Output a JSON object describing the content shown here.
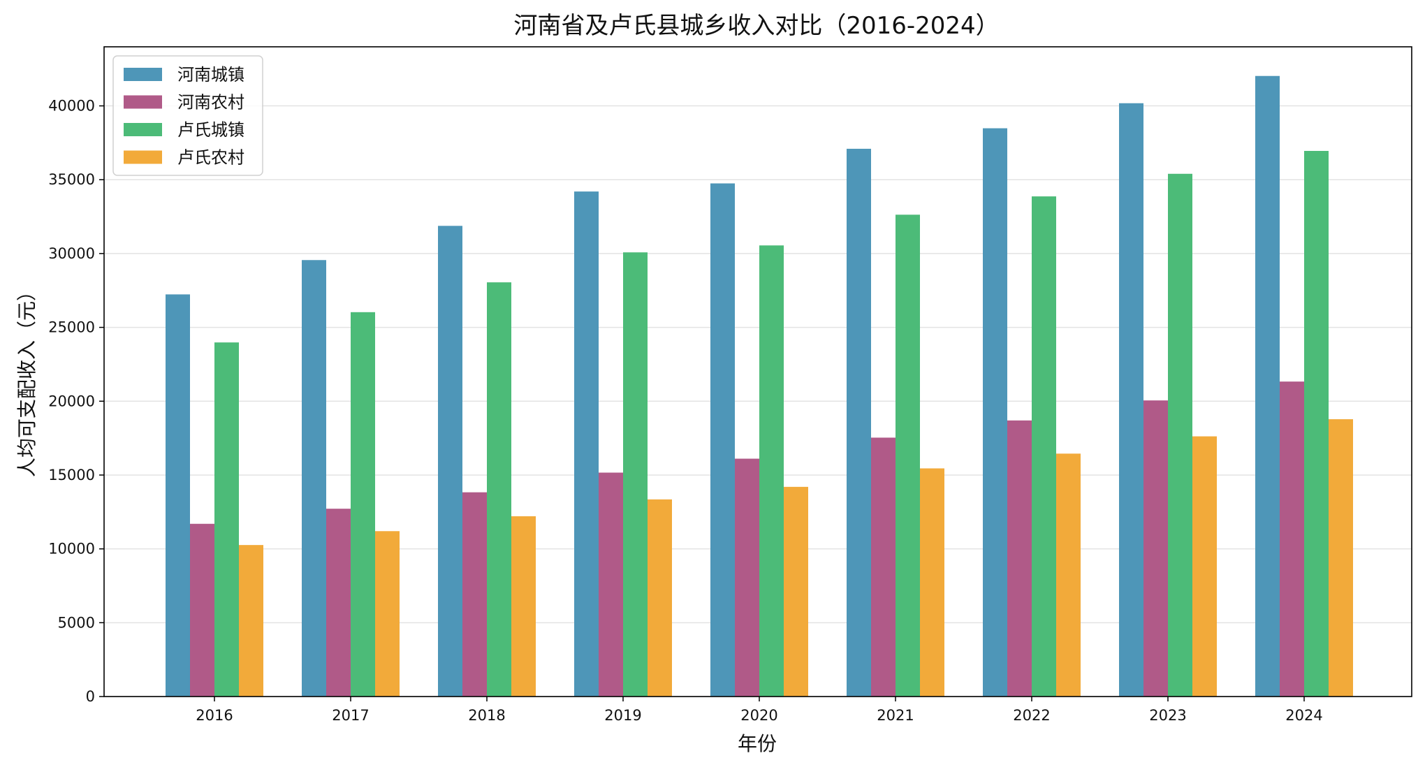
{
  "chart_data": {
    "type": "bar",
    "title": "河南省及卢氏县城乡收入对比（2016-2024）",
    "xlabel": "年份",
    "ylabel": "人均可支配收入（元）",
    "categories": [
      "2016",
      "2017",
      "2018",
      "2019",
      "2020",
      "2021",
      "2022",
      "2023",
      "2024"
    ],
    "ylim": [
      0,
      44000
    ],
    "yticks": [
      0,
      5000,
      10000,
      15000,
      20000,
      25000,
      30000,
      35000,
      40000
    ],
    "grid": "horizontal",
    "legend_position": "top-left",
    "series": [
      {
        "name": "河南城镇",
        "color": "#4e96b8",
        "values": [
          27233,
          29558,
          31874,
          34201,
          34750,
          37095,
          38484,
          40180,
          42026
        ]
      },
      {
        "name": "河南农村",
        "color": "#b05a88",
        "values": [
          11697,
          12719,
          13831,
          15164,
          16108,
          17533,
          18697,
          20053,
          21330
        ]
      },
      {
        "name": "卢氏城镇",
        "color": "#4cbb78",
        "values": [
          23980,
          26030,
          28050,
          30080,
          30550,
          32630,
          33870,
          35400,
          36950
        ]
      },
      {
        "name": "卢氏农村",
        "color": "#f2aa3a",
        "values": [
          10260,
          11200,
          12210,
          13350,
          14200,
          15450,
          16450,
          17620,
          18780
        ]
      }
    ]
  }
}
